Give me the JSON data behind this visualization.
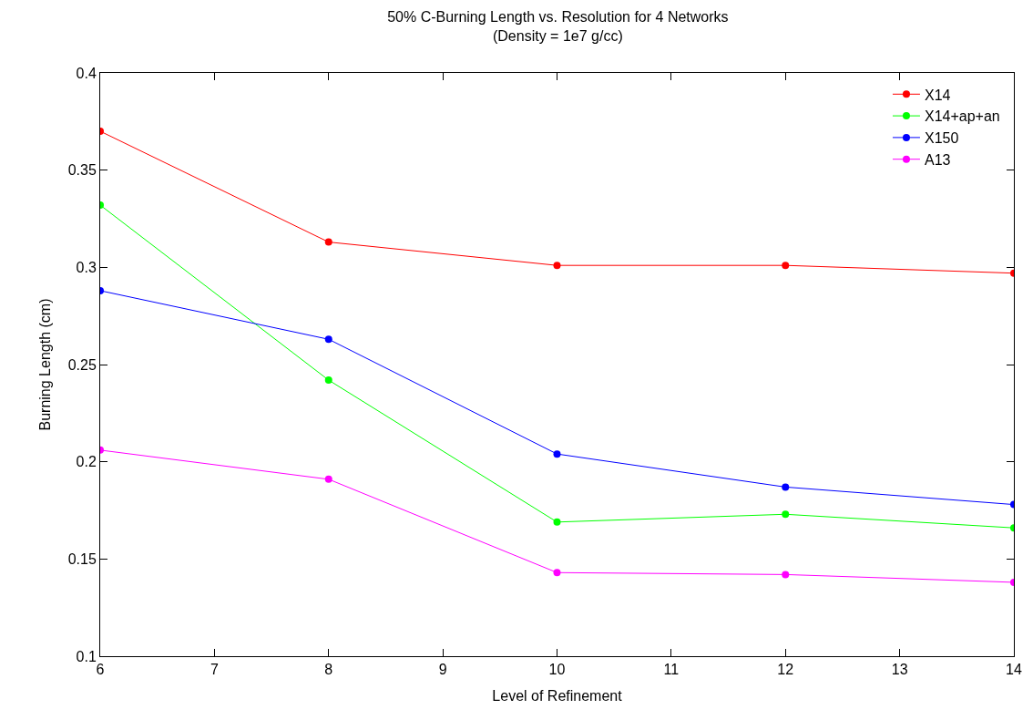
{
  "chart_data": {
    "type": "line",
    "title": "50% C-Burning Length vs. Resolution for 4 Networks",
    "subtitle": "(Density = 1e7 g/cc)",
    "xlabel": "Level of Refinement",
    "ylabel": "Burning Length (cm)",
    "x": [
      6,
      8,
      10,
      12,
      14
    ],
    "series": [
      {
        "name": "X14",
        "color": "#ff0000",
        "values": [
          0.37,
          0.313,
          0.301,
          0.301,
          0.297
        ]
      },
      {
        "name": "X14+ap+an",
        "color": "#00ff00",
        "values": [
          0.332,
          0.242,
          0.169,
          0.173,
          0.166
        ]
      },
      {
        "name": "X150",
        "color": "#0000ff",
        "values": [
          0.288,
          0.263,
          0.204,
          0.187,
          0.178
        ]
      },
      {
        "name": "A13",
        "color": "#ff00ff",
        "values": [
          0.206,
          0.191,
          0.143,
          0.142,
          0.138
        ]
      }
    ],
    "xlim": [
      6,
      14
    ],
    "xticks": [
      6,
      7,
      8,
      9,
      10,
      11,
      12,
      13,
      14
    ],
    "ylim": [
      0.1,
      0.4
    ],
    "yticks": [
      0.1,
      0.15,
      0.2,
      0.25,
      0.3,
      0.35,
      0.4
    ],
    "marker": "circle",
    "line_style": "solid",
    "legend": "top right"
  }
}
